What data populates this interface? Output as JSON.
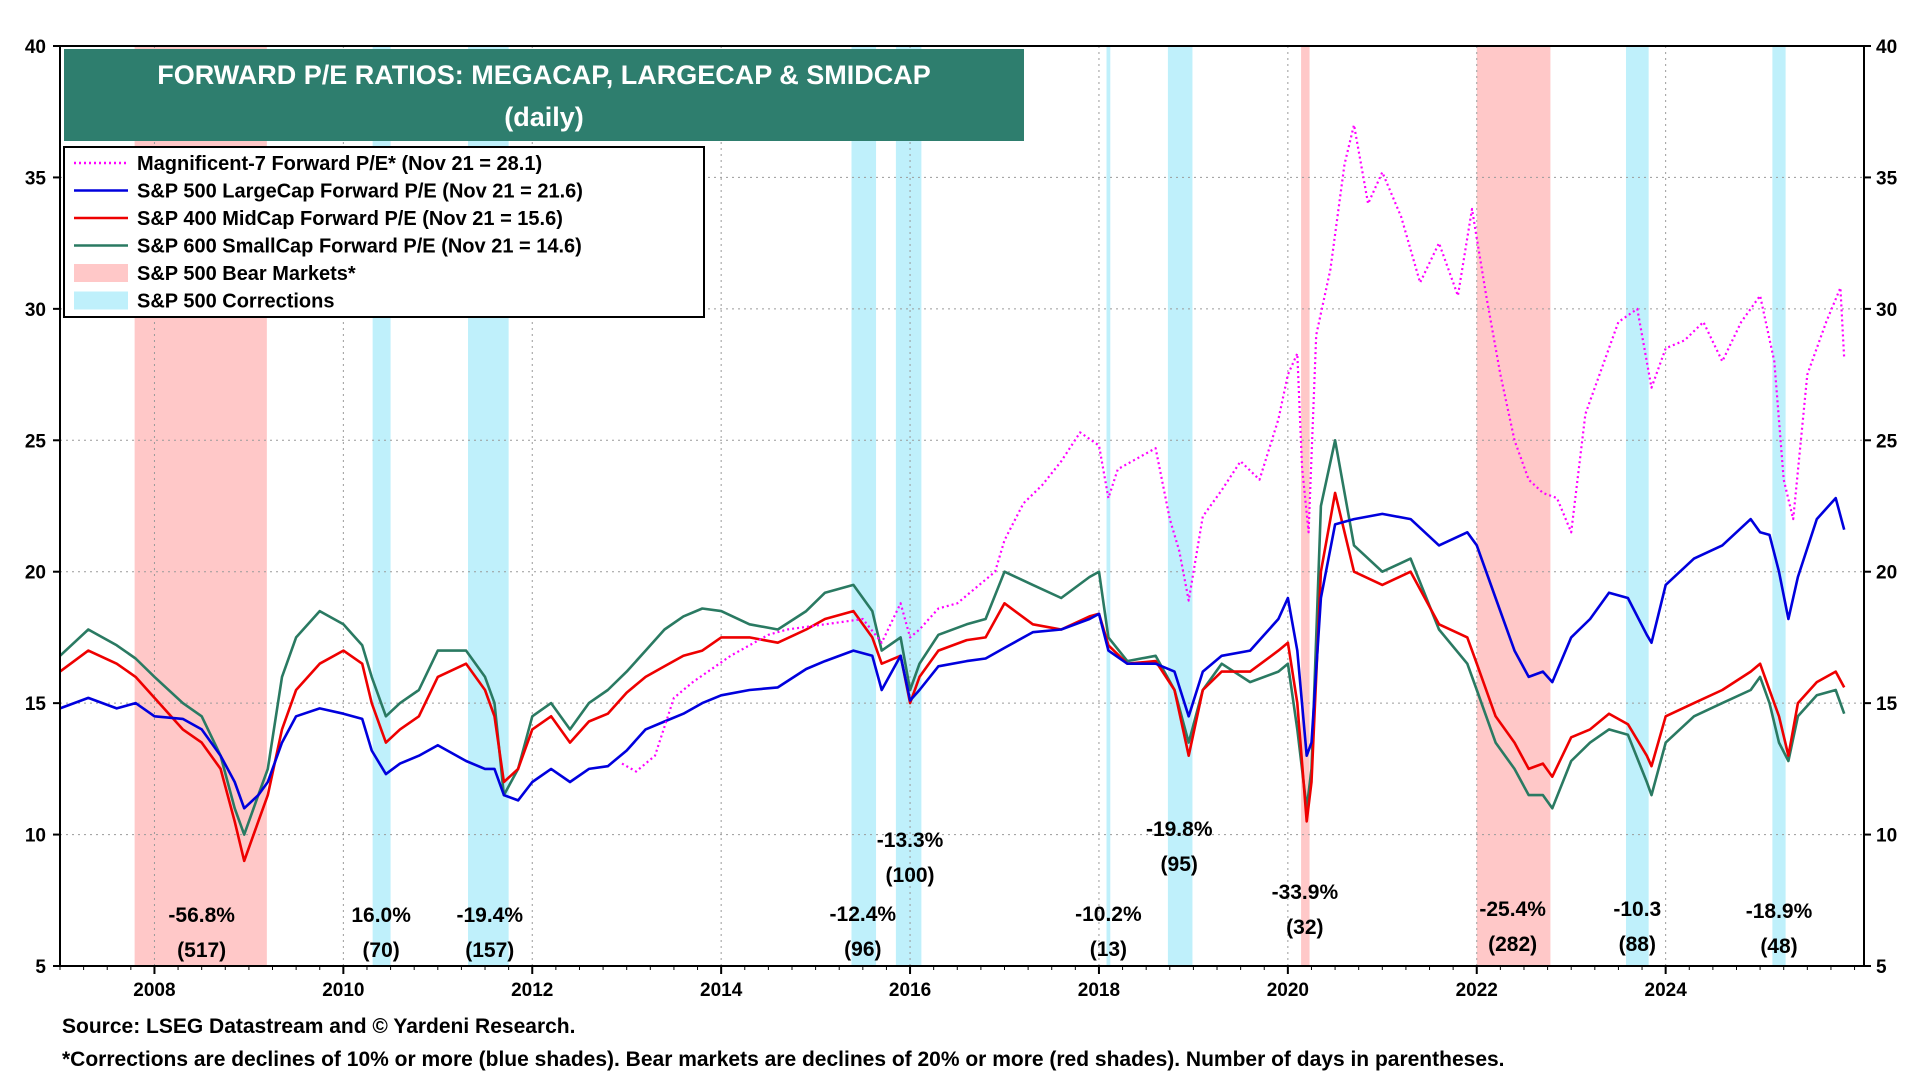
{
  "chart_data": {
    "type": "line",
    "title": "FORWARD P/E RATIOS: MEGACAP, LARGECAP & SMIDCAP",
    "subtitle": "(daily)",
    "xlabel": "",
    "ylabel": "",
    "xlim": [
      2007.0,
      2026.1
    ],
    "ylim": [
      5,
      40
    ],
    "y_ticks": [
      5,
      10,
      15,
      20,
      25,
      30,
      35,
      40
    ],
    "y_tick_labels": [
      "5",
      "10",
      "15",
      "20",
      "25",
      "30",
      "35",
      "40"
    ],
    "x_ticks": [
      2008,
      2010,
      2012,
      2014,
      2016,
      2018,
      2020,
      2022,
      2024
    ],
    "x_tick_labels": [
      "2008",
      "2010",
      "2012",
      "2014",
      "2016",
      "2018",
      "2020",
      "2022",
      "2024"
    ],
    "grid": true,
    "secondary_y_axis": true,
    "legend_position": "top-left",
    "series": [
      {
        "name": "Magnificent-7 Forward P/E* (Nov 21 = 28.1)",
        "color": "#ff00ff",
        "style": "dotted",
        "x": [
          2012.95,
          2013.1,
          2013.3,
          2013.5,
          2013.7,
          2013.9,
          2014.1,
          2014.3,
          2014.5,
          2014.7,
          2014.9,
          2015.1,
          2015.3,
          2015.5,
          2015.7,
          2015.9,
          2016.0,
          2016.1,
          2016.3,
          2016.5,
          2016.7,
          2016.9,
          2017.0,
          2017.2,
          2017.4,
          2017.6,
          2017.8,
          2018.0,
          2018.1,
          2018.2,
          2018.4,
          2018.6,
          2018.75,
          2018.85,
          2018.95,
          2019.1,
          2019.3,
          2019.5,
          2019.7,
          2019.9,
          2020.0,
          2020.1,
          2020.15,
          2020.22,
          2020.3,
          2020.45,
          2020.6,
          2020.7,
          2020.85,
          2021.0,
          2021.2,
          2021.4,
          2021.6,
          2021.8,
          2021.95,
          2022.1,
          2022.25,
          2022.4,
          2022.55,
          2022.7,
          2022.85,
          2023.0,
          2023.15,
          2023.3,
          2023.5,
          2023.7,
          2023.85,
          2024.0,
          2024.2,
          2024.4,
          2024.6,
          2024.8,
          2025.0,
          2025.15,
          2025.25,
          2025.35,
          2025.5,
          2025.7,
          2025.85,
          2025.89
        ],
        "values": [
          12.7,
          12.4,
          13.0,
          15.2,
          15.8,
          16.3,
          16.8,
          17.2,
          17.6,
          17.8,
          17.9,
          18.0,
          18.1,
          18.2,
          17.3,
          18.8,
          17.5,
          17.8,
          18.6,
          18.8,
          19.4,
          20.0,
          21.2,
          22.6,
          23.3,
          24.2,
          25.3,
          24.8,
          22.8,
          23.9,
          24.3,
          24.7,
          22.0,
          20.8,
          18.9,
          22.1,
          23.1,
          24.2,
          23.5,
          25.8,
          27.5,
          28.3,
          24.0,
          21.5,
          29.0,
          31.5,
          35.5,
          37.0,
          34.0,
          35.2,
          33.5,
          31.0,
          32.5,
          30.5,
          33.8,
          30.5,
          27.5,
          25.0,
          23.5,
          23.0,
          22.8,
          21.5,
          26.0,
          27.5,
          29.5,
          30.0,
          27.0,
          28.5,
          28.8,
          29.5,
          28.0,
          29.5,
          30.5,
          28.0,
          23.5,
          22.0,
          27.5,
          29.5,
          30.8,
          28.1
        ]
      },
      {
        "name": "S&P 500 LargeCap Forward P/E (Nov 21 = 21.6)",
        "color": "#0000dd",
        "style": "solid",
        "x": [
          2007.0,
          2007.3,
          2007.6,
          2007.8,
          2008.0,
          2008.3,
          2008.5,
          2008.7,
          2008.85,
          2008.95,
          2009.1,
          2009.2,
          2009.35,
          2009.5,
          2009.75,
          2010.0,
          2010.2,
          2010.3,
          2010.45,
          2010.6,
          2010.8,
          2011.0,
          2011.3,
          2011.5,
          2011.6,
          2011.7,
          2011.85,
          2012.0,
          2012.2,
          2012.4,
          2012.6,
          2012.8,
          2013.0,
          2013.2,
          2013.4,
          2013.6,
          2013.8,
          2014.0,
          2014.3,
          2014.6,
          2014.9,
          2015.1,
          2015.4,
          2015.6,
          2015.7,
          2015.9,
          2016.0,
          2016.1,
          2016.3,
          2016.6,
          2016.8,
          2017.0,
          2017.3,
          2017.6,
          2017.9,
          2018.0,
          2018.1,
          2018.3,
          2018.6,
          2018.8,
          2018.95,
          2019.1,
          2019.3,
          2019.6,
          2019.9,
          2020.0,
          2020.1,
          2020.2,
          2020.25,
          2020.35,
          2020.5,
          2020.7,
          2021.0,
          2021.3,
          2021.6,
          2021.9,
          2022.0,
          2022.2,
          2022.4,
          2022.55,
          2022.7,
          2022.8,
          2023.0,
          2023.2,
          2023.4,
          2023.6,
          2023.8,
          2023.85,
          2024.0,
          2024.3,
          2024.6,
          2024.9,
          2025.0,
          2025.1,
          2025.2,
          2025.3,
          2025.4,
          2025.6,
          2025.8,
          2025.89
        ],
        "values": [
          14.8,
          15.2,
          14.8,
          15.0,
          14.5,
          14.4,
          14.0,
          13.0,
          12.0,
          11.0,
          11.5,
          12.0,
          13.5,
          14.5,
          14.8,
          14.6,
          14.4,
          13.2,
          12.3,
          12.7,
          13.0,
          13.4,
          12.8,
          12.5,
          12.5,
          11.5,
          11.3,
          12.0,
          12.5,
          12.0,
          12.5,
          12.6,
          13.2,
          14.0,
          14.3,
          14.6,
          15.0,
          15.3,
          15.5,
          15.6,
          16.3,
          16.6,
          17.0,
          16.8,
          15.5,
          16.8,
          15.1,
          15.5,
          16.4,
          16.6,
          16.7,
          17.1,
          17.7,
          17.8,
          18.2,
          18.4,
          17.0,
          16.5,
          16.5,
          16.2,
          14.5,
          16.2,
          16.8,
          17.0,
          18.2,
          19.0,
          17.0,
          13.0,
          13.5,
          19.0,
          21.8,
          22.0,
          22.2,
          22.0,
          21.0,
          21.5,
          21.0,
          19.0,
          17.0,
          16.0,
          16.2,
          15.8,
          17.5,
          18.2,
          19.2,
          19.0,
          17.6,
          17.3,
          19.5,
          20.5,
          21.0,
          22.0,
          21.5,
          21.4,
          20.0,
          18.2,
          19.8,
          22.0,
          22.8,
          21.6
        ]
      },
      {
        "name": "S&P 400 MidCap Forward P/E (Nov 21 = 15.6)",
        "color": "#ee0000",
        "style": "solid",
        "x": [
          2007.0,
          2007.3,
          2007.6,
          2007.8,
          2008.0,
          2008.3,
          2008.5,
          2008.7,
          2008.85,
          2008.95,
          2009.1,
          2009.2,
          2009.35,
          2009.5,
          2009.75,
          2010.0,
          2010.2,
          2010.3,
          2010.45,
          2010.6,
          2010.8,
          2011.0,
          2011.3,
          2011.5,
          2011.6,
          2011.7,
          2011.85,
          2012.0,
          2012.2,
          2012.4,
          2012.6,
          2012.8,
          2013.0,
          2013.2,
          2013.4,
          2013.6,
          2013.8,
          2014.0,
          2014.3,
          2014.6,
          2014.9,
          2015.1,
          2015.4,
          2015.6,
          2015.7,
          2015.9,
          2016.0,
          2016.1,
          2016.3,
          2016.6,
          2016.8,
          2017.0,
          2017.3,
          2017.6,
          2017.9,
          2018.0,
          2018.1,
          2018.3,
          2018.6,
          2018.8,
          2018.95,
          2019.1,
          2019.3,
          2019.6,
          2019.9,
          2020.0,
          2020.1,
          2020.2,
          2020.25,
          2020.35,
          2020.5,
          2020.7,
          2021.0,
          2021.3,
          2021.6,
          2021.9,
          2022.0,
          2022.2,
          2022.4,
          2022.55,
          2022.7,
          2022.8,
          2023.0,
          2023.2,
          2023.4,
          2023.6,
          2023.8,
          2023.85,
          2024.0,
          2024.3,
          2024.6,
          2024.9,
          2025.0,
          2025.1,
          2025.2,
          2025.3,
          2025.4,
          2025.6,
          2025.8,
          2025.89
        ],
        "values": [
          16.2,
          17.0,
          16.5,
          16.0,
          15.2,
          14.0,
          13.5,
          12.5,
          10.5,
          9.0,
          10.5,
          11.5,
          14.0,
          15.5,
          16.5,
          17.0,
          16.5,
          15.0,
          13.5,
          14.0,
          14.5,
          16.0,
          16.5,
          15.5,
          14.5,
          12.0,
          12.5,
          14.0,
          14.5,
          13.5,
          14.3,
          14.6,
          15.4,
          16.0,
          16.4,
          16.8,
          17.0,
          17.5,
          17.5,
          17.3,
          17.8,
          18.2,
          18.5,
          17.5,
          16.5,
          16.8,
          15.0,
          16.0,
          17.0,
          17.4,
          17.5,
          18.8,
          18.0,
          17.8,
          18.3,
          18.4,
          17.2,
          16.5,
          16.6,
          15.5,
          13.0,
          15.5,
          16.2,
          16.2,
          17.0,
          17.3,
          15.0,
          10.5,
          12.0,
          20.0,
          23.0,
          20.0,
          19.5,
          20.0,
          18.0,
          17.5,
          16.5,
          14.5,
          13.5,
          12.5,
          12.7,
          12.2,
          13.7,
          14.0,
          14.6,
          14.2,
          13.0,
          12.6,
          14.5,
          15.0,
          15.5,
          16.2,
          16.5,
          15.5,
          14.5,
          13.0,
          15.0,
          15.8,
          16.2,
          15.6
        ]
      },
      {
        "name": "S&P 600 SmallCap Forward P/E (Nov 21 = 14.6)",
        "color": "#2a7a62",
        "style": "solid",
        "x": [
          2007.0,
          2007.3,
          2007.6,
          2007.8,
          2008.0,
          2008.3,
          2008.5,
          2008.7,
          2008.85,
          2008.95,
          2009.1,
          2009.2,
          2009.35,
          2009.5,
          2009.75,
          2010.0,
          2010.2,
          2010.3,
          2010.45,
          2010.6,
          2010.8,
          2011.0,
          2011.3,
          2011.5,
          2011.6,
          2011.7,
          2011.85,
          2012.0,
          2012.2,
          2012.4,
          2012.6,
          2012.8,
          2013.0,
          2013.2,
          2013.4,
          2013.6,
          2013.8,
          2014.0,
          2014.3,
          2014.6,
          2014.9,
          2015.1,
          2015.4,
          2015.6,
          2015.7,
          2015.9,
          2016.0,
          2016.1,
          2016.3,
          2016.6,
          2016.8,
          2017.0,
          2017.3,
          2017.6,
          2017.9,
          2018.0,
          2018.1,
          2018.3,
          2018.6,
          2018.8,
          2018.95,
          2019.1,
          2019.3,
          2019.6,
          2019.9,
          2020.0,
          2020.1,
          2020.2,
          2020.25,
          2020.35,
          2020.5,
          2020.7,
          2021.0,
          2021.3,
          2021.6,
          2021.9,
          2022.0,
          2022.2,
          2022.4,
          2022.55,
          2022.7,
          2022.8,
          2023.0,
          2023.2,
          2023.4,
          2023.6,
          2023.8,
          2023.85,
          2024.0,
          2024.3,
          2024.6,
          2024.9,
          2025.0,
          2025.1,
          2025.2,
          2025.3,
          2025.4,
          2025.6,
          2025.8,
          2025.89
        ],
        "values": [
          16.8,
          17.8,
          17.2,
          16.7,
          16.0,
          15.0,
          14.5,
          13.0,
          11.0,
          10.0,
          11.5,
          12.5,
          16.0,
          17.5,
          18.5,
          18.0,
          17.2,
          16.0,
          14.5,
          15.0,
          15.5,
          17.0,
          17.0,
          16.0,
          15.0,
          11.5,
          12.5,
          14.5,
          15.0,
          14.0,
          15.0,
          15.5,
          16.2,
          17.0,
          17.8,
          18.3,
          18.6,
          18.5,
          18.0,
          17.8,
          18.5,
          19.2,
          19.5,
          18.5,
          17.0,
          17.5,
          15.5,
          16.5,
          17.6,
          18.0,
          18.2,
          20.0,
          19.5,
          19.0,
          19.8,
          20.0,
          17.5,
          16.6,
          16.8,
          15.5,
          13.5,
          15.5,
          16.5,
          15.8,
          16.2,
          16.5,
          14.0,
          11.0,
          12.5,
          22.5,
          25.0,
          21.0,
          20.0,
          20.5,
          17.8,
          16.5,
          15.5,
          13.5,
          12.5,
          11.5,
          11.5,
          11.0,
          12.8,
          13.5,
          14.0,
          13.8,
          12.0,
          11.5,
          13.5,
          14.5,
          15.0,
          15.5,
          16.0,
          15.0,
          13.5,
          12.8,
          14.5,
          15.3,
          15.5,
          14.6
        ]
      }
    ],
    "shaded_periods": [
      {
        "label": "S&P 500 Bear Markets*",
        "color": "#ffc8c8",
        "periods": [
          [
            2007.79,
            2009.19
          ],
          [
            2020.14,
            2020.23
          ],
          [
            2022.0,
            2022.78
          ]
        ]
      },
      {
        "label": "S&P 500 Corrections",
        "color": "#bff0fb",
        "periods": [
          [
            2010.31,
            2010.5
          ],
          [
            2011.32,
            2011.75
          ],
          [
            2015.38,
            2015.64
          ],
          [
            2015.85,
            2016.12
          ],
          [
            2018.08,
            2018.12
          ],
          [
            2018.73,
            2018.99
          ],
          [
            2023.58,
            2023.82
          ],
          [
            2025.13,
            2025.27
          ]
        ]
      }
    ],
    "annotations": [
      {
        "x": 2008.5,
        "pct": "-56.8%",
        "days": "(517)"
      },
      {
        "x": 2010.4,
        "pct": "16.0%",
        "days": "(70)"
      },
      {
        "x": 2011.55,
        "pct": "-19.4%",
        "days": "(157)"
      },
      {
        "x": 2015.5,
        "pct": "-12.4%",
        "days": "(96)"
      },
      {
        "x": 2016.0,
        "pct": "-13.3%",
        "days": "(100)"
      },
      {
        "x": 2018.1,
        "pct": "-10.2%",
        "days": "(13)"
      },
      {
        "x": 2018.85,
        "pct": "-19.8%",
        "days": "(95)"
      },
      {
        "x": 2020.18,
        "pct": "-33.9%",
        "days": "(32)"
      },
      {
        "x": 2022.38,
        "pct": "-25.4%",
        "days": "(282)"
      },
      {
        "x": 2023.7,
        "pct": "-10.3",
        "days": "(88)"
      },
      {
        "x": 2025.2,
        "pct": "-18.9%",
        "days": "(48)"
      }
    ]
  },
  "footer": {
    "source": "Source: LSEG Datastream and © Yardeni Research.",
    "note": "*Corrections are declines of 10% or more (blue shades). Bear markets are declines of 20% or more (red shades). Number of days in parentheses."
  }
}
